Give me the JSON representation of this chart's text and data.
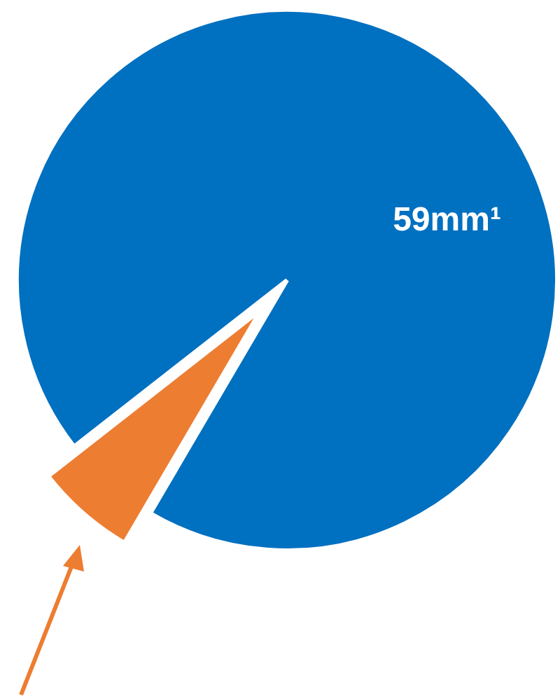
{
  "chart_data": {
    "type": "pie",
    "categories": [
      "59mm¹",
      null
    ],
    "values": [
      94,
      6
    ],
    "colors": [
      "#0070c0",
      "#ed7d31"
    ]
  }
}
